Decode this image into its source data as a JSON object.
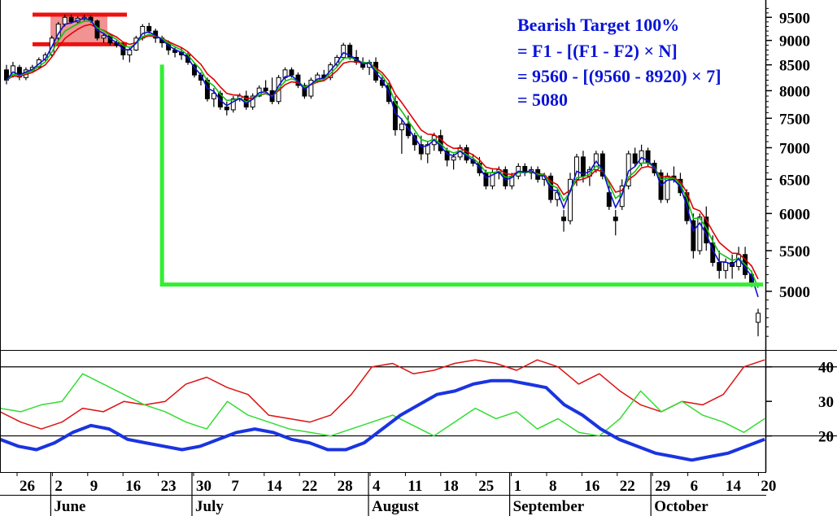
{
  "chart_data": {
    "type": "candlestick",
    "colors": {
      "ema_fast": "#1010d0",
      "ema_mid": "#10c010",
      "ema_slow": "#e00000",
      "candle": "#000000",
      "highlight_zone": "#f08080",
      "target_line": "#33ee33",
      "adx": "#1a34e0",
      "plus_di": "#33dd33",
      "minus_di": "#dd1111"
    },
    "price_axis": {
      "ticks": [
        "9500",
        "9000",
        "8500",
        "8000",
        "7500",
        "7000",
        "6500",
        "6000",
        "5500",
        "5000"
      ],
      "tick_values": [
        9500,
        9000,
        8500,
        8000,
        7500,
        7000,
        6500,
        6000,
        5500,
        5000
      ],
      "scale": "log",
      "range": [
        4400,
        9800
      ]
    },
    "indicator_axis": {
      "ticks": [
        "40",
        "30",
        "20"
      ],
      "tick_values": [
        40,
        30,
        20
      ],
      "reference_lines": [
        40,
        20
      ],
      "range": [
        10,
        43
      ]
    },
    "x_axis": {
      "day_ticks": [
        "26",
        "2",
        "9",
        "16",
        "23",
        "30",
        "7",
        "14",
        "22",
        "28",
        "4",
        "11",
        "18",
        "25",
        "1",
        "8",
        "16",
        "22",
        "29",
        "6",
        "14",
        "20"
      ],
      "month_labels": [
        "June",
        "July",
        "August",
        "September",
        "October"
      ],
      "month_start_tick": [
        1,
        5,
        10,
        14,
        18
      ]
    },
    "annotation": {
      "lines": [
        "Bearish Target 100%",
        "= F1 - [(F1 - F2) × N]",
        "= 9560 - [(9560 - 8920) × 7]",
        "= 5080"
      ]
    },
    "levels": {
      "F1": 9560,
      "F2": 8920,
      "target": 5080
    },
    "candles": [
      [
        8400,
        8500,
        8120,
        8200
      ],
      [
        8280,
        8560,
        8250,
        8480
      ],
      [
        8450,
        8500,
        8200,
        8260
      ],
      [
        8250,
        8450,
        8200,
        8400
      ],
      [
        8380,
        8500,
        8360,
        8450
      ],
      [
        8460,
        8650,
        8420,
        8600
      ],
      [
        8600,
        8750,
        8560,
        8700
      ],
      [
        8700,
        9100,
        8650,
        9050
      ],
      [
        9050,
        9400,
        9000,
        9350
      ],
      [
        9350,
        9560,
        9300,
        9500
      ],
      [
        9500,
        9560,
        9360,
        9400
      ],
      [
        9400,
        9520,
        9360,
        9480
      ],
      [
        9480,
        9560,
        9400,
        9500
      ],
      [
        9500,
        9540,
        9380,
        9420
      ],
      [
        9420,
        9450,
        9000,
        9050
      ],
      [
        9050,
        9150,
        8950,
        9100
      ],
      [
        9100,
        9150,
        8900,
        8950
      ],
      [
        8950,
        9000,
        8850,
        8900
      ],
      [
        8900,
        8950,
        8600,
        8700
      ],
      [
        8700,
        8850,
        8550,
        8800
      ],
      [
        8800,
        9100,
        8780,
        9050
      ],
      [
        9050,
        9350,
        9000,
        9300
      ],
      [
        9300,
        9380,
        9150,
        9200
      ],
      [
        9200,
        9250,
        8950,
        9050
      ],
      [
        9050,
        9100,
        8850,
        8950
      ],
      [
        8950,
        9000,
        8700,
        8800
      ],
      [
        8800,
        8850,
        8650,
        8750
      ],
      [
        8750,
        8850,
        8600,
        8700
      ],
      [
        8700,
        8750,
        8500,
        8550
      ],
      [
        8500,
        8550,
        8250,
        8300
      ],
      [
        8300,
        8350,
        8100,
        8200
      ],
      [
        8200,
        8250,
        7800,
        7850
      ],
      [
        7850,
        8050,
        7700,
        7950
      ],
      [
        7950,
        8000,
        7650,
        7700
      ],
      [
        7700,
        7800,
        7550,
        7650
      ],
      [
        7650,
        7900,
        7600,
        7850
      ],
      [
        7850,
        7950,
        7800,
        7900
      ],
      [
        7900,
        8000,
        7650,
        7700
      ],
      [
        7700,
        7950,
        7650,
        7900
      ],
      [
        7900,
        8100,
        7880,
        8050
      ],
      [
        8050,
        8200,
        7950,
        8000
      ],
      [
        8000,
        8250,
        7750,
        7800
      ],
      [
        7800,
        8300,
        7750,
        8250
      ],
      [
        8250,
        8450,
        8200,
        8400
      ],
      [
        8400,
        8450,
        8250,
        8300
      ],
      [
        8300,
        8350,
        8050,
        8100
      ],
      [
        8100,
        8150,
        7850,
        7900
      ],
      [
        7900,
        8250,
        7850,
        8200
      ],
      [
        8200,
        8350,
        8150,
        8300
      ],
      [
        8300,
        8400,
        8200,
        8250
      ],
      [
        8250,
        8550,
        8200,
        8500
      ],
      [
        8500,
        8700,
        8450,
        8650
      ],
      [
        8650,
        8950,
        8600,
        8900
      ],
      [
        8900,
        8950,
        8600,
        8650
      ],
      [
        8650,
        8800,
        8500,
        8550
      ],
      [
        8550,
        8650,
        8400,
        8450
      ],
      [
        8450,
        8600,
        8300,
        8550
      ],
      [
        8550,
        8650,
        8150,
        8200
      ],
      [
        8200,
        8300,
        8050,
        8100
      ],
      [
        8100,
        8150,
        7750,
        7800
      ],
      [
        7800,
        7900,
        7200,
        7300
      ],
      [
        7300,
        7500,
        6900,
        7400
      ],
      [
        7400,
        7550,
        7150,
        7200
      ],
      [
        7200,
        7250,
        6950,
        7050
      ],
      [
        7050,
        7200,
        6800,
        6900
      ],
      [
        6900,
        7100,
        6750,
        7050
      ],
      [
        7050,
        7250,
        6950,
        7200
      ],
      [
        7200,
        7300,
        6900,
        6950
      ],
      [
        6950,
        7000,
        6700,
        6800
      ],
      [
        6800,
        6900,
        6650,
        6850
      ],
      [
        6850,
        7050,
        6800,
        7000
      ],
      [
        7000,
        7050,
        6750,
        6800
      ],
      [
        6800,
        6900,
        6700,
        6750
      ],
      [
        6750,
        6850,
        6550,
        6600
      ],
      [
        6600,
        6650,
        6350,
        6400
      ],
      [
        6400,
        6650,
        6350,
        6600
      ],
      [
        6600,
        6700,
        6500,
        6650
      ],
      [
        6650,
        6700,
        6350,
        6400
      ],
      [
        6400,
        6600,
        6350,
        6550
      ],
      [
        6550,
        6750,
        6500,
        6700
      ],
      [
        6700,
        6750,
        6550,
        6600
      ],
      [
        6600,
        6700,
        6500,
        6650
      ],
      [
        6650,
        6700,
        6450,
        6500
      ],
      [
        6500,
        6600,
        6400,
        6550
      ],
      [
        6550,
        6600,
        6150,
        6200
      ],
      [
        6200,
        6350,
        6100,
        6300
      ],
      [
        5950,
        6050,
        5750,
        5900
      ],
      [
        5900,
        6600,
        5850,
        6500
      ],
      [
        6500,
        6900,
        6400,
        6850
      ],
      [
        6850,
        6950,
        6450,
        6550
      ],
      [
        6550,
        6700,
        6400,
        6650
      ],
      [
        6650,
        6950,
        6600,
        6900
      ],
      [
        6900,
        6950,
        6500,
        6550
      ],
      [
        6300,
        6400,
        6050,
        6100
      ],
      [
        5950,
        6050,
        5700,
        5900
      ],
      [
        6100,
        6500,
        6050,
        6400
      ],
      [
        6400,
        6950,
        6350,
        6900
      ],
      [
        6900,
        7000,
        6700,
        6750
      ],
      [
        6750,
        7050,
        6700,
        6950
      ],
      [
        6950,
        7000,
        6700,
        6750
      ],
      [
        6750,
        6800,
        6550,
        6600
      ],
      [
        6600,
        6650,
        6150,
        6200
      ],
      [
        6200,
        6600,
        6150,
        6550
      ],
      [
        6550,
        6700,
        6450,
        6500
      ],
      [
        6500,
        6600,
        6250,
        6300
      ],
      [
        6300,
        6350,
        5850,
        5900
      ],
      [
        5900,
        6000,
        5400,
        5500
      ],
      [
        5500,
        6000,
        5450,
        5950
      ],
      [
        5950,
        6100,
        5500,
        5600
      ],
      [
        5600,
        5700,
        5300,
        5350
      ],
      [
        5350,
        5500,
        5150,
        5250
      ],
      [
        5250,
        5400,
        5150,
        5350
      ],
      [
        5350,
        5450,
        5150,
        5300
      ],
      [
        5300,
        5550,
        5250,
        5450
      ],
      [
        5450,
        5550,
        5150,
        5200
      ],
      [
        5200,
        5250,
        5050,
        5100
      ],
      [
        4650,
        4800,
        4500,
        4750
      ]
    ],
    "target_line_start_index": 24,
    "plus_di": [
      28,
      27,
      29,
      30,
      38,
      35,
      32,
      29,
      27,
      24,
      22,
      30,
      26,
      24,
      22,
      21,
      20,
      22,
      24,
      26,
      23,
      20,
      24,
      28,
      25,
      27,
      22,
      25,
      21,
      20,
      25,
      33,
      27,
      30,
      26,
      24,
      21,
      25
    ],
    "minus_di": [
      27,
      24,
      22,
      24,
      28,
      27,
      30,
      29,
      30,
      35,
      37,
      34,
      32,
      26,
      25,
      24,
      26,
      32,
      40,
      41,
      38,
      39,
      41,
      42,
      41,
      39,
      42,
      40,
      35,
      38,
      33,
      29,
      27,
      30,
      29,
      32,
      40,
      42
    ],
    "adx": [
      19,
      17,
      16,
      18,
      21,
      23,
      22,
      19,
      18,
      17,
      16,
      17,
      19,
      21,
      22,
      21,
      19,
      18,
      16,
      16,
      18,
      22,
      26,
      29,
      32,
      33,
      35,
      36,
      36,
      35,
      34,
      29,
      26,
      22,
      19,
      17,
      15,
      14,
      13,
      14,
      15,
      17,
      19
    ]
  }
}
